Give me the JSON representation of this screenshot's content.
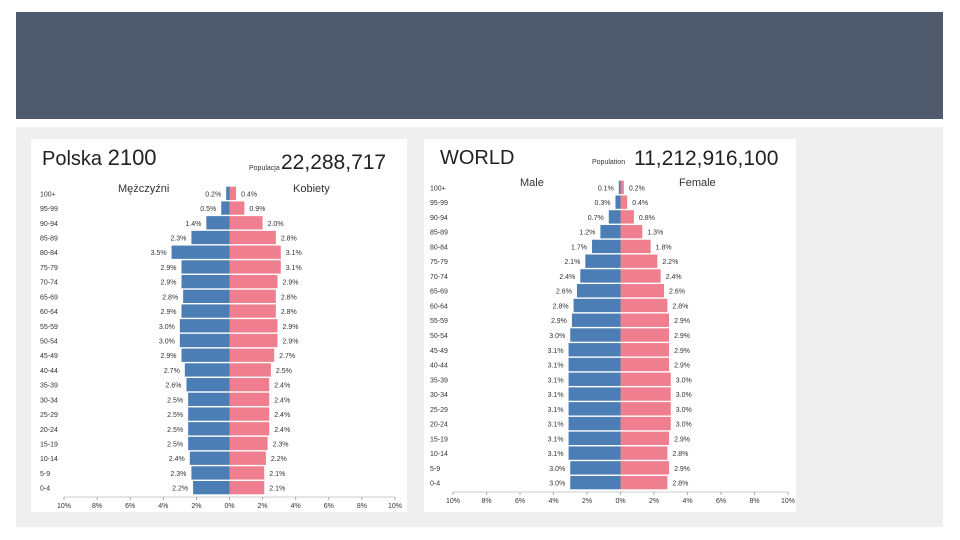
{
  "colors": {
    "male": "#4a7eb5",
    "female": "#ef7f8e",
    "header": "#4f5b6d"
  },
  "chart_data": [
    {
      "type": "bar",
      "title_country": "Polska",
      "title_year": "2100",
      "population_label": "Populacja",
      "population": "22,288,717",
      "male_label": "Mężczyźni",
      "female_label": "Kobiety",
      "categories": [
        "100+",
        "95-99",
        "90-94",
        "85-89",
        "80-84",
        "75-79",
        "70-74",
        "65-69",
        "60-64",
        "55-59",
        "50-54",
        "45-49",
        "40-44",
        "35-39",
        "30-34",
        "25-29",
        "20-24",
        "15-19",
        "10-14",
        "5-9",
        "0-4"
      ],
      "series": [
        {
          "name": "Mężczyźni",
          "values": [
            0.2,
            0.5,
            1.4,
            2.3,
            3.5,
            2.9,
            2.9,
            2.8,
            2.9,
            3.0,
            3.0,
            2.9,
            2.7,
            2.6,
            2.5,
            2.5,
            2.5,
            2.5,
            2.4,
            2.3,
            2.2
          ],
          "labels": [
            "0.2%",
            "0.5%",
            "1.4%",
            "2.3%",
            "3.5%",
            "2.9%",
            "2.9%",
            "2.8%",
            "2.9%",
            "3.0%",
            "3.0%",
            "2.9%",
            "2.7%",
            "2.6%",
            "2.5%",
            "2.5%",
            "2.5%",
            "2.5%",
            "2.4%",
            "2.3%",
            "2.2%"
          ]
        },
        {
          "name": "Kobiety",
          "values": [
            0.4,
            0.9,
            2.0,
            2.8,
            3.1,
            3.1,
            2.9,
            2.8,
            2.8,
            2.9,
            2.9,
            2.7,
            2.5,
            2.4,
            2.4,
            2.4,
            2.4,
            2.3,
            2.2,
            2.1,
            2.1
          ],
          "labels": [
            "0.4%",
            "0.9%",
            "2.0%",
            "2.8%",
            "3.1%",
            "3.1%",
            "2.9%",
            "2.8%",
            "2.8%",
            "2.9%",
            "2.9%",
            "2.7%",
            "2.5%",
            "2.4%",
            "2.4%",
            "2.4%",
            "2.4%",
            "2.3%",
            "2.2%",
            "2.1%",
            "2.1%"
          ]
        }
      ],
      "xlim": [
        -10,
        10
      ],
      "x_ticks": [
        "10%",
        "8%",
        "6%",
        "4%",
        "2%",
        "0%",
        "2%",
        "4%",
        "6%",
        "8%",
        "10%"
      ]
    },
    {
      "type": "bar",
      "title_country": "WORLD",
      "title_year": "",
      "population_label": "Population",
      "population": "11,212,916,100",
      "male_label": "Male",
      "female_label": "Female",
      "categories": [
        "100+",
        "95-99",
        "90-94",
        "85-89",
        "80-84",
        "75-79",
        "70-74",
        "65-69",
        "60-64",
        "55-59",
        "50-54",
        "45-49",
        "40-44",
        "35-39",
        "30-34",
        "25-29",
        "20-24",
        "15-19",
        "10-14",
        "5-9",
        "0-4"
      ],
      "series": [
        {
          "name": "Male",
          "values": [
            0.1,
            0.3,
            0.7,
            1.2,
            1.7,
            2.1,
            2.4,
            2.6,
            2.8,
            2.9,
            3.0,
            3.1,
            3.1,
            3.1,
            3.1,
            3.1,
            3.1,
            3.1,
            3.1,
            3.0,
            3.0
          ],
          "labels": [
            "0.1%",
            "0.3%",
            "0.7%",
            "1.2%",
            "1.7%",
            "2.1%",
            "2.4%",
            "2.6%",
            "2.8%",
            "2.9%",
            "3.0%",
            "3.1%",
            "3.1%",
            "3.1%",
            "3.1%",
            "3.1%",
            "3.1%",
            "3.1%",
            "3.1%",
            "3.0%",
            "3.0%"
          ]
        },
        {
          "name": "Female",
          "values": [
            0.2,
            0.4,
            0.8,
            1.3,
            1.8,
            2.2,
            2.4,
            2.6,
            2.8,
            2.9,
            2.9,
            2.9,
            2.9,
            3.0,
            3.0,
            3.0,
            3.0,
            2.9,
            2.8,
            2.9,
            2.8
          ],
          "labels": [
            "0.2%",
            "0.4%",
            "0.8%",
            "1.3%",
            "1.8%",
            "2.2%",
            "2.4%",
            "2.6%",
            "2.8%",
            "2.9%",
            "2.9%",
            "2.9%",
            "2.9%",
            "3.0%",
            "3.0%",
            "3.0%",
            "3.0%",
            "2.9%",
            "2.8%",
            "2.9%",
            "2.8%"
          ]
        }
      ],
      "xlim": [
        -10,
        10
      ],
      "x_ticks": [
        "10%",
        "8%",
        "6%",
        "4%",
        "2%",
        "0%",
        "2%",
        "4%",
        "6%",
        "8%",
        "10%"
      ]
    }
  ]
}
